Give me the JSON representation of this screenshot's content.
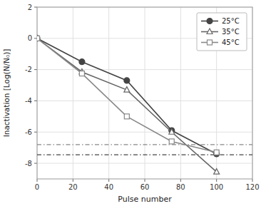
{
  "chart_data": {
    "type": "line",
    "xlabel": "Pulse number",
    "ylabel": "Inactivation [Log(N/N₀)]",
    "x": [
      0,
      25,
      50,
      75,
      100
    ],
    "series": [
      {
        "name": "25°C",
        "color": "#444444",
        "marker": "circle",
        "values": [
          0,
          -1.5,
          -2.7,
          -5.9,
          -7.4
        ]
      },
      {
        "name": "35°C",
        "color": "#666666",
        "marker": "triangle-open",
        "values": [
          0,
          -2.15,
          -3.3,
          -6.0,
          -8.55
        ]
      },
      {
        "name": "45°C",
        "color": "#888888",
        "marker": "square-open",
        "values": [
          0,
          -2.25,
          -5.0,
          -6.6,
          -7.3
        ]
      }
    ],
    "hlines": [
      {
        "y": -6.8,
        "color": "#888888",
        "line_style": "dashdot"
      },
      {
        "y": -7.45,
        "color": "#444444",
        "line_style": "dashdot"
      }
    ],
    "xlim": [
      0,
      120
    ],
    "ylim": [
      -9,
      2
    ],
    "xticks": [
      0,
      20,
      40,
      60,
      80,
      100,
      120
    ],
    "yticks": [
      -8,
      -6,
      -4,
      -2,
      0,
      2
    ],
    "grid": true,
    "legend": "upper right"
  }
}
